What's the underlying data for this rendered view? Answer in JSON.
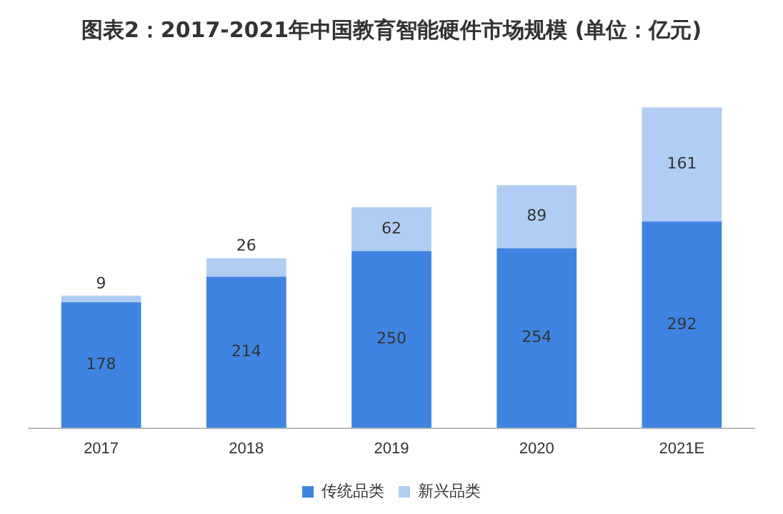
{
  "chart_data": {
    "type": "bar",
    "title": "图表2：2017-2021年中国教育智能硬件市场规模 (单位：亿元)",
    "categories": [
      "2017",
      "2018",
      "2019",
      "2020",
      "2021E"
    ],
    "stacked": true,
    "data_labels": true,
    "legend": "bottom",
    "grid": false,
    "series": [
      {
        "name": "传统品类",
        "color": "#3f84e0",
        "values": [
          178,
          214,
          250,
          254,
          292
        ]
      },
      {
        "name": "新兴品类",
        "color": "#b1cdf3",
        "values": [
          9,
          26,
          62,
          89,
          161
        ]
      }
    ]
  }
}
